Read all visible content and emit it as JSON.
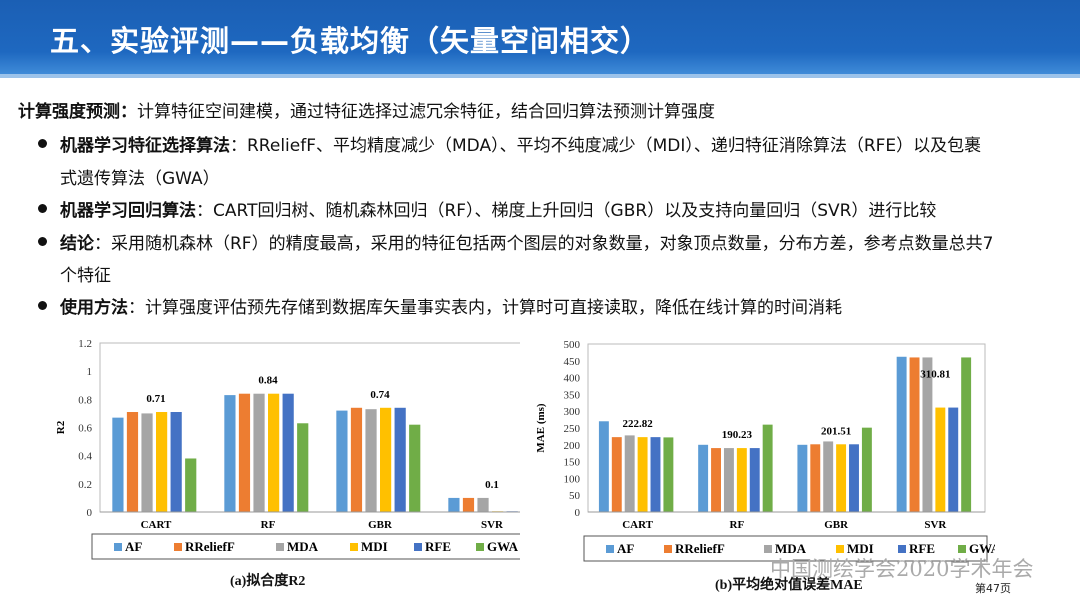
{
  "title": "五、实验评测——负载均衡（矢量空间相交）",
  "intro": {
    "label": "计算强度预测：",
    "text": "计算特征空间建模，通过特征选择过滤冗余特征，结合回归算法预测计算强度"
  },
  "bullets": [
    {
      "label": "机器学习特征选择算法",
      "text": "：RReliefF、平均精度减少（MDA）、平均不纯度减少（MDI）、递归特征消除算法（RFE）以及包裹",
      "cont": "式遗传算法（GWA）"
    },
    {
      "label": "机器学习回归算法",
      "text": "：CART回归树、随机森林回归（RF）、梯度上升回归（GBR）以及支持向量回归（SVR）进行比较",
      "cont": ""
    },
    {
      "label": "结论",
      "text": "：采用随机森林（RF）的精度最高，采用的特征包括两个图层的对象数量，对象顶点数量，分布方差，参考点数量总共7",
      "cont": "个特征"
    },
    {
      "label": "使用方法",
      "text": "：计算强度评估预先存储到数据库矢量事实表内，计算时可直接读取，降低在线计算的时间消耗",
      "cont": ""
    }
  ],
  "colors": {
    "AF": "#5b9bd5",
    "RReliefF": "#ed7d31",
    "MDA": "#a5a5a5",
    "MDI": "#ffc000",
    "RFE": "#4472c4",
    "GWA": "#70ad47"
  },
  "chart_data": [
    {
      "type": "bar",
      "caption": "(a)拟合度R2",
      "ylabel": "R2",
      "ylim": [
        0,
        1.2
      ],
      "yticks": [
        "0",
        "0.2",
        "0.4",
        "0.6",
        "0.8",
        "1",
        "1.2"
      ],
      "ytickvals": [
        0,
        0.2,
        0.4,
        0.6,
        0.8,
        1,
        1.2
      ],
      "categories": [
        "CART",
        "RF",
        "GBR",
        "SVR"
      ],
      "series": [
        {
          "name": "AF",
          "values": [
            0.67,
            0.83,
            0.72,
            0.1
          ]
        },
        {
          "name": "RReliefF",
          "values": [
            0.71,
            0.84,
            0.74,
            0.1
          ]
        },
        {
          "name": "MDA",
          "values": [
            0.7,
            0.84,
            0.73,
            0.1
          ]
        },
        {
          "name": "MDI",
          "values": [
            0.71,
            0.84,
            0.74,
            0.005
          ]
        },
        {
          "name": "RFE",
          "values": [
            0.71,
            0.84,
            0.74,
            0.005
          ]
        },
        {
          "name": "GWA",
          "values": [
            0.38,
            0.63,
            0.62,
            0.1
          ]
        }
      ],
      "annotations": [
        "0.71",
        "0.84",
        "0.74",
        "0.1"
      ],
      "legend": "bottom"
    },
    {
      "type": "bar",
      "caption": "(b)平均绝对值误差MAE",
      "ylabel": "MAE  (ms)",
      "ylim": [
        0,
        500
      ],
      "yticks": [
        "0",
        "50",
        "100",
        "150",
        "200",
        "250",
        "300",
        "350",
        "400",
        "450",
        "500"
      ],
      "ytickvals": [
        0,
        50,
        100,
        150,
        200,
        250,
        300,
        350,
        400,
        450,
        500
      ],
      "categories": [
        "CART",
        "RF",
        "GBR",
        "SVR"
      ],
      "series": [
        {
          "name": "AF",
          "values": [
            270,
            200,
            200,
            462
          ]
        },
        {
          "name": "RReliefF",
          "values": [
            222.82,
            190.23,
            201.51,
            460
          ]
        },
        {
          "name": "MDA",
          "values": [
            228,
            190.23,
            210,
            460
          ]
        },
        {
          "name": "MDI",
          "values": [
            222.82,
            190.23,
            201.51,
            310.81
          ]
        },
        {
          "name": "RFE",
          "values": [
            222.82,
            190.23,
            201.51,
            310.81
          ]
        },
        {
          "name": "GWA",
          "values": [
            222,
            260,
            251,
            460
          ]
        }
      ],
      "annotations": [
        "222.82",
        "190.23",
        "201.51",
        "310.81"
      ],
      "legend": "bottom"
    }
  ],
  "watermark": "中国测绘学会2020学术年会",
  "page": "第47页"
}
